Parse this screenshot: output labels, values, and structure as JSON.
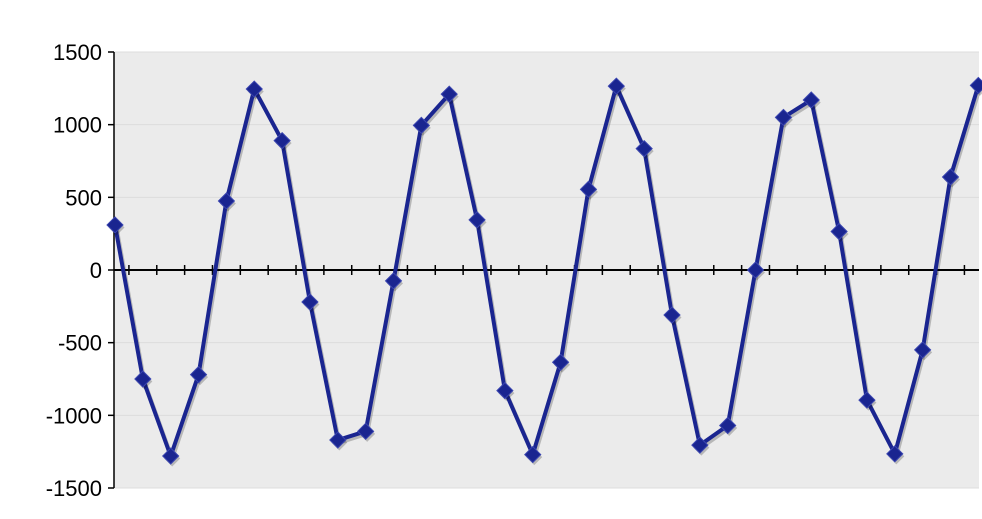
{
  "chart_data": {
    "type": "line",
    "title": "",
    "xlabel": "",
    "ylabel": "",
    "ylim": [
      -1500,
      1500
    ],
    "y_ticks": [
      1500,
      1000,
      500,
      0,
      -500,
      -1000,
      -1500
    ],
    "y_tick_labels": [
      "1500",
      "1000",
      "500",
      "0",
      "-500",
      "-1000",
      "-1500"
    ],
    "grid": true,
    "legend": "none",
    "colors": {
      "line": "#1a2590",
      "marker": "#1a2590",
      "plot_background": "#ebebeb",
      "gridline": "#dcdcdc",
      "zero_axis": "#000000"
    },
    "series": [
      {
        "values": [
          310,
          -750,
          -1280,
          -720,
          475,
          1245,
          890,
          -220,
          -1170,
          -1110,
          -75,
          995,
          1210,
          345,
          -830,
          -1270,
          -635,
          555,
          1265,
          835,
          -310,
          -1205,
          -1070,
          0,
          1050,
          1170,
          265,
          -895,
          -1265,
          -550,
          640,
          1270
        ]
      }
    ]
  }
}
